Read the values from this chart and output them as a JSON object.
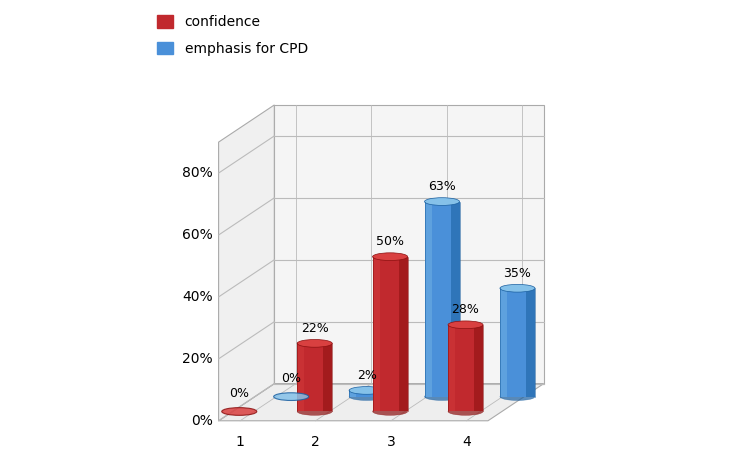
{
  "categories": [
    "1",
    "2",
    "3",
    "4"
  ],
  "confidence": [
    0,
    22,
    50,
    28
  ],
  "emphasis": [
    0,
    2,
    63,
    35
  ],
  "conf_body": "#C1292E",
  "conf_light": "#D94040",
  "conf_dark": "#8B1010",
  "emph_body": "#4A90D9",
  "emph_light": "#85C1E9",
  "emph_dark": "#1A5FA0",
  "bg_color": "#ffffff",
  "grid_color": "#bbbbbb",
  "wall_color": "#f0f0f0",
  "floor_color": "#e8e8e8",
  "legend_confidence": "confidence",
  "legend_emphasis": "emphasis for CPD",
  "ytick_vals": [
    0,
    20,
    40,
    60,
    80
  ],
  "ytick_labels": [
    "0%",
    "20%",
    "40%",
    "60%",
    "80%"
  ],
  "ylim_max": 90,
  "label_fontsize": 9,
  "axis_fontsize": 10,
  "legend_fontsize": 10
}
